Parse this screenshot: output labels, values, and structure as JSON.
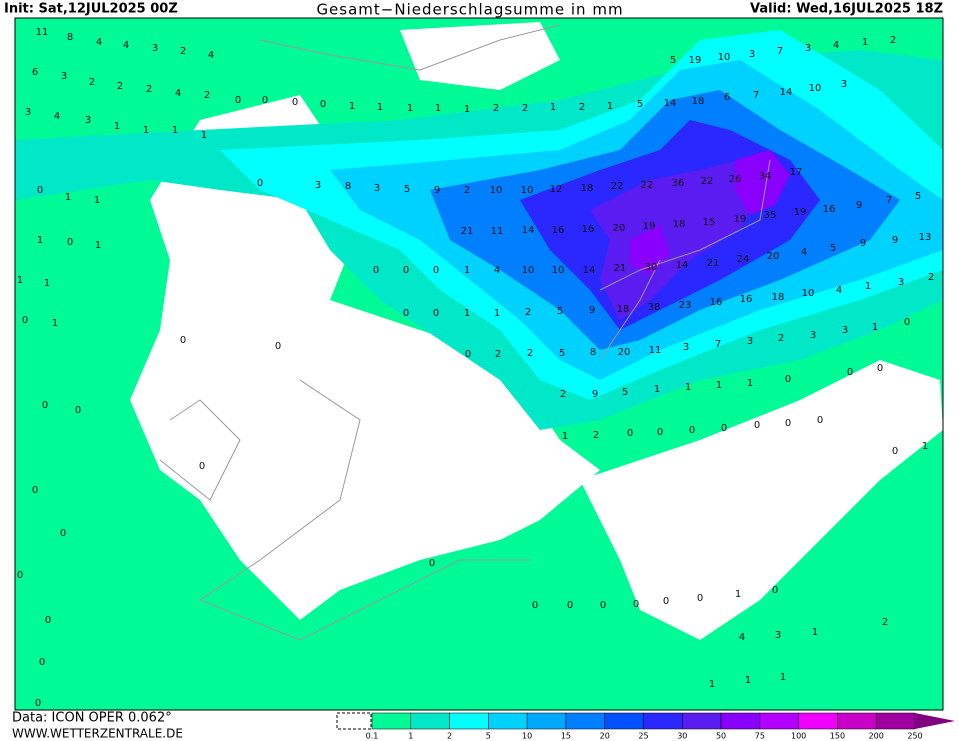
{
  "header": {
    "init": "Init: Sat,12JUL2025 00Z",
    "title": "Gesamt−Niederschlagsumme in mm",
    "valid": "Valid: Wed,16JUL2025 18Z"
  },
  "footer": {
    "data": "Data: ICON OPER 0.062°",
    "site": "WWW.WETTERZENTRALE.DE"
  },
  "legend": {
    "ticks": [
      0.1,
      1,
      2,
      5,
      10,
      15,
      20,
      25,
      30,
      50,
      75,
      100,
      150,
      200,
      250
    ],
    "colors": [
      "#00fa96",
      "#00e8c8",
      "#00ffff",
      "#00d2ff",
      "#00a8ff",
      "#0080ff",
      "#0050ff",
      "#2a28ff",
      "#5a1cf0",
      "#8a00ff",
      "#b400ff",
      "#f000ff",
      "#c800c8",
      "#a000a0",
      "#800080"
    ]
  },
  "map": {
    "labels": [
      11,
      8,
      4,
      4,
      3,
      2,
      4,
      6,
      3,
      2,
      2,
      2,
      4,
      2,
      3,
      4,
      3,
      1,
      1,
      1,
      1,
      0,
      0,
      0,
      0,
      1,
      1,
      1,
      1,
      1,
      2,
      2,
      1,
      2,
      1,
      5,
      14,
      18,
      6,
      7,
      14,
      10,
      3,
      5,
      19,
      10,
      3,
      7,
      3,
      4,
      1,
      2,
      0,
      3,
      8,
      3,
      5,
      9,
      2,
      10,
      10,
      12,
      18,
      22,
      22,
      36,
      22,
      26,
      34,
      17,
      21,
      11,
      14,
      16,
      16,
      20,
      19,
      18,
      15,
      19,
      35,
      19,
      16,
      9,
      7,
      5,
      0,
      0,
      0,
      1,
      4,
      10,
      10,
      14,
      21,
      30,
      14,
      21,
      24,
      20,
      4,
      5,
      9,
      9,
      13,
      0,
      0,
      1,
      1,
      2,
      5,
      9,
      18,
      38,
      23,
      16,
      16,
      18,
      10,
      4,
      1,
      3,
      2,
      0,
      2,
      2,
      5,
      8,
      20,
      11,
      3,
      7,
      3,
      2,
      3,
      3,
      1,
      0,
      2,
      9,
      5,
      1,
      1,
      1,
      1,
      0,
      0,
      0,
      1,
      2,
      0,
      0,
      0,
      0,
      0,
      0,
      0,
      0,
      1,
      0,
      1,
      1,
      1,
      0,
      1,
      1,
      1,
      0,
      1,
      0,
      0,
      0,
      0,
      0,
      0,
      0,
      0,
      0,
      0,
      0,
      0,
      0,
      0,
      0,
      0,
      0,
      1,
      0,
      4,
      3,
      1,
      2,
      1,
      1,
      1,
      0
    ]
  }
}
